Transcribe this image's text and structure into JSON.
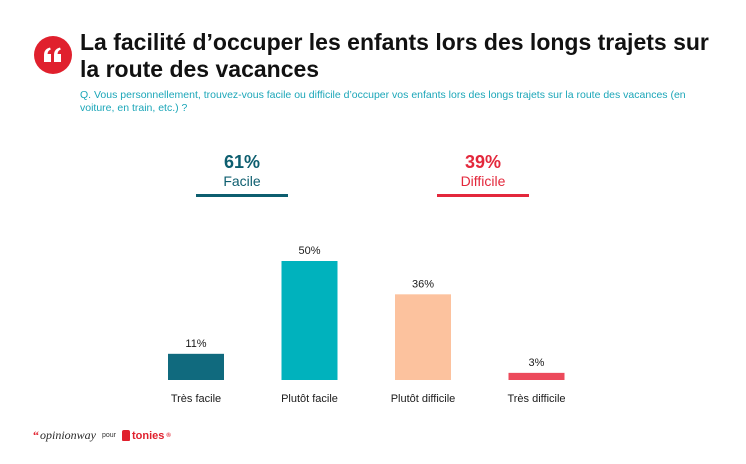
{
  "header": {
    "title": "La facilité d’occuper les enfants lors des longs trajets sur la route des vacances",
    "question": "Q. Vous personnellement, trouvez-vous facile ou difficile d’occuper vos enfants lors des longs trajets sur la route des vacances (en voiture, en train, etc.) ?",
    "icon": "quote-icon"
  },
  "summary": {
    "easy": {
      "pct": "61%",
      "label": "Facile",
      "color": "#0d5e6f"
    },
    "hard": {
      "pct": "39%",
      "label": "Difficile",
      "color": "#e3283c"
    }
  },
  "chart_data": {
    "type": "bar",
    "title": "La facilité d’occuper les enfants lors des longs trajets sur la route des vacances",
    "categories": [
      "Très facile",
      "Plutôt facile",
      "Plutôt difficile",
      "Très difficile"
    ],
    "values": [
      11,
      50,
      36,
      3
    ],
    "value_labels": [
      "11%",
      "50%",
      "36%",
      "3%"
    ],
    "colors": [
      "#106a7e",
      "#00b2bd",
      "#fcc29e",
      "#ec4a5b"
    ],
    "ylim": [
      0,
      50
    ],
    "grid": false,
    "xlabel": "",
    "ylabel": ""
  },
  "footer": {
    "brand": "opinionway",
    "brand_mark": "“",
    "pour": "pour",
    "partner": "tonies",
    "partner_mark": "®"
  }
}
